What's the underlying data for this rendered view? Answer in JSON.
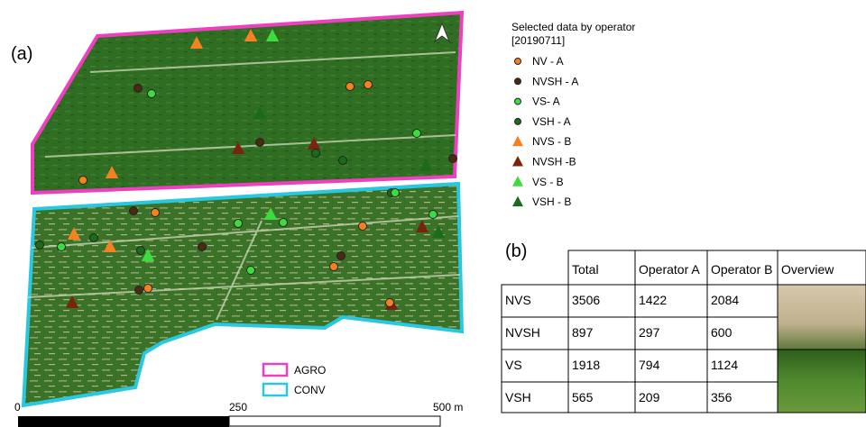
{
  "panel_a": {
    "label": "(a)",
    "legend": {
      "title_lines": [
        "Selected data by operator",
        "[20190711]"
      ],
      "items": [
        {
          "label": "NV - A",
          "color": "#f5821f",
          "shape": "circle"
        },
        {
          "label": "NVSH - A",
          "color": "#4a2a12",
          "shape": "circle"
        },
        {
          "label": "VS- A",
          "color": "#3ddc3d",
          "shape": "circle"
        },
        {
          "label": "VSH - A",
          "color": "#1a6b1a",
          "shape": "circle"
        },
        {
          "label": "NVS - B",
          "color": "#f5821f",
          "shape": "triangle"
        },
        {
          "label": "NVSH -B",
          "color": "#7a2410",
          "shape": "triangle"
        },
        {
          "label": "VS - B",
          "color": "#3ddc3d",
          "shape": "triangle"
        },
        {
          "label": "VSH - B",
          "color": "#1a6b1a",
          "shape": "triangle"
        }
      ]
    },
    "areas": [
      {
        "label": "AGRO",
        "color": "#ee3fbf"
      },
      {
        "label": "CONV",
        "color": "#29c8e0"
      }
    ],
    "scale_labels": [
      "0",
      "250",
      "500 m"
    ]
  },
  "panel_b": {
    "label": "(b)",
    "table": {
      "header": [
        "",
        "Total",
        "Operator A",
        "Operator B",
        "Overview"
      ],
      "rows": [
        [
          "NVS",
          3506,
          1422,
          2084
        ],
        [
          "NVSH",
          897,
          297,
          600
        ],
        [
          "VS",
          1918,
          794,
          1124
        ],
        [
          "VSH",
          565,
          209,
          356
        ]
      ]
    }
  }
}
